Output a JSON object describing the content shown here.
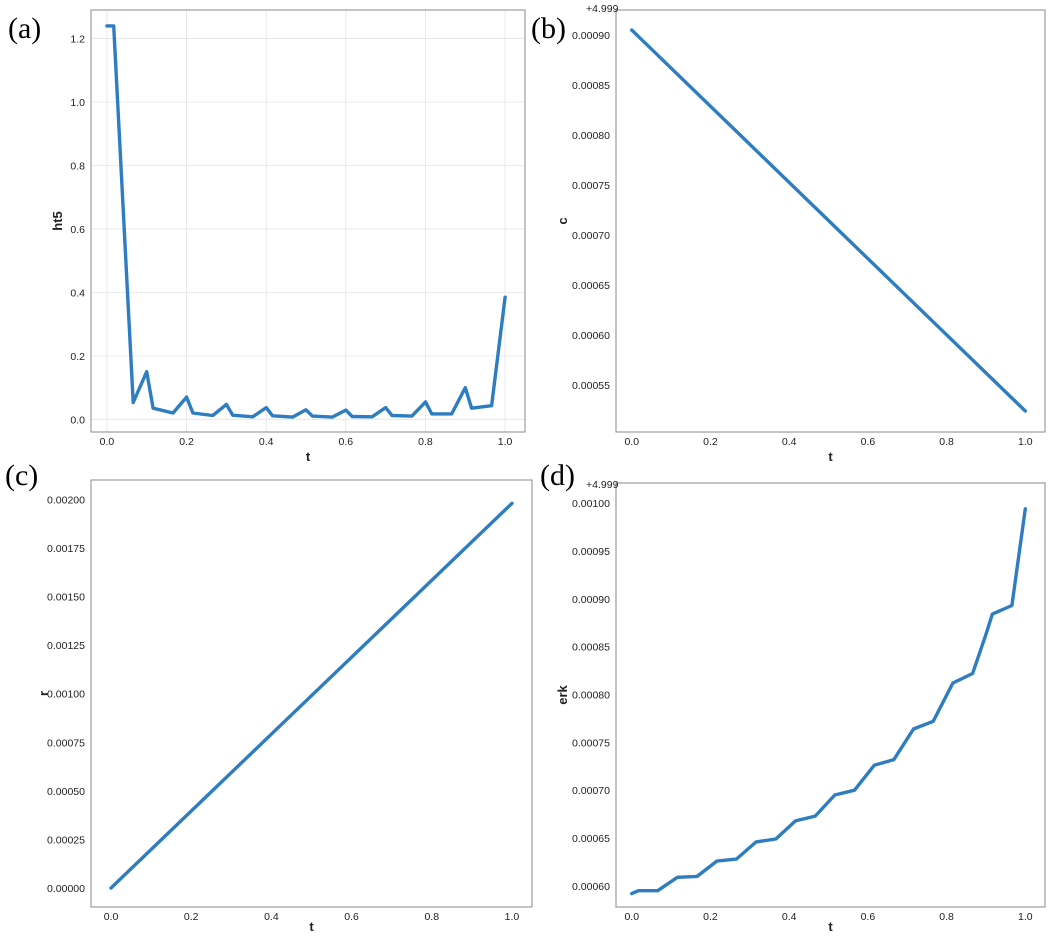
{
  "colors": {
    "line": "#2e7dc0",
    "frame": "#888888",
    "grid": "#e4e4e4"
  },
  "chart_data": [
    {
      "panel_label": "(a)",
      "type": "line",
      "xlabel": "t",
      "ylabel": "ht5",
      "offset_text": "",
      "grid": true,
      "xlim": [
        -0.04,
        1.05
      ],
      "ylim": [
        -0.04,
        1.29
      ],
      "xticks": [
        0.0,
        0.2,
        0.4,
        0.6,
        0.8,
        1.0
      ],
      "xtick_labels": [
        "0.0",
        "0.2",
        "0.4",
        "0.6",
        "0.8",
        "1.0"
      ],
      "yticks": [
        0.0,
        0.2,
        0.4,
        0.6,
        0.8,
        1.0,
        1.2
      ],
      "ytick_labels": [
        "0.0",
        "0.2",
        "0.4",
        "0.6",
        "0.8",
        "1.0",
        "1.2"
      ],
      "series": [
        {
          "x": [
            0.0,
            0.017,
            0.066,
            0.1,
            0.116,
            0.166,
            0.2,
            0.216,
            0.266,
            0.3,
            0.316,
            0.366,
            0.4,
            0.416,
            0.466,
            0.5,
            0.516,
            0.566,
            0.6,
            0.616,
            0.666,
            0.7,
            0.716,
            0.766,
            0.8,
            0.816,
            0.866,
            0.9,
            0.916,
            0.966,
            1.0
          ],
          "y": [
            1.24,
            1.24,
            0.053,
            0.15,
            0.035,
            0.02,
            0.07,
            0.02,
            0.012,
            0.047,
            0.013,
            0.008,
            0.037,
            0.011,
            0.007,
            0.03,
            0.01,
            0.007,
            0.029,
            0.009,
            0.008,
            0.037,
            0.012,
            0.01,
            0.055,
            0.017,
            0.017,
            0.1,
            0.035,
            0.043,
            0.385
          ]
        }
      ]
    },
    {
      "panel_label": "(b)",
      "type": "line",
      "xlabel": "t",
      "ylabel": "c",
      "offset_text": "+4.999",
      "grid": false,
      "xlim": [
        -0.04,
        1.05
      ],
      "ylim": [
        0.000503,
        0.000925
      ],
      "xticks": [
        0.0,
        0.2,
        0.4,
        0.6,
        0.8,
        1.0
      ],
      "xtick_labels": [
        "0.0",
        "0.2",
        "0.4",
        "0.6",
        "0.8",
        "1.0"
      ],
      "yticks": [
        0.00055,
        0.0006,
        0.00065,
        0.0007,
        0.00075,
        0.0008,
        0.00085,
        0.0009
      ],
      "ytick_labels": [
        "0.00055",
        "0.00060",
        "0.00065",
        "0.00070",
        "0.00075",
        "0.00080",
        "0.00085",
        "0.00090"
      ],
      "series": [
        {
          "x": [
            0.0,
            1.0
          ],
          "y": [
            0.000905,
            0.000524
          ]
        }
      ]
    },
    {
      "panel_label": "(c)",
      "type": "line",
      "xlabel": "t",
      "ylabel": "r",
      "offset_text": "",
      "grid": false,
      "xlim": [
        -0.05,
        1.05
      ],
      "ylim": [
        -9.8e-05,
        0.0021
      ],
      "xticks": [
        0.0,
        0.2,
        0.4,
        0.6,
        0.8,
        1.0
      ],
      "xtick_labels": [
        "0.0",
        "0.2",
        "0.4",
        "0.6",
        "0.8",
        "1.0"
      ],
      "yticks": [
        0.0,
        0.00025,
        0.0005,
        0.00075,
        0.001,
        0.00125,
        0.0015,
        0.00175,
        0.002
      ],
      "ytick_labels": [
        "0.00000",
        "0.00025",
        "0.00050",
        "0.00075",
        "0.00100",
        "0.00125",
        "0.00150",
        "0.00175",
        "0.00200"
      ],
      "series": [
        {
          "x": [
            0.0,
            1.0
          ],
          "y": [
            0.0,
            0.00198
          ]
        }
      ]
    },
    {
      "panel_label": "(d)",
      "type": "line",
      "xlabel": "t",
      "ylabel": "erk",
      "offset_text": "+4.999",
      "grid": false,
      "xlim": [
        -0.04,
        1.05
      ],
      "ylim": [
        0.000578,
        0.001021
      ],
      "xticks": [
        0.0,
        0.2,
        0.4,
        0.6,
        0.8,
        1.0
      ],
      "xtick_labels": [
        "0.0",
        "0.2",
        "0.4",
        "0.6",
        "0.8",
        "1.0"
      ],
      "yticks": [
        0.0006,
        0.00065,
        0.0007,
        0.00075,
        0.0008,
        0.00085,
        0.0009,
        0.00095,
        0.001
      ],
      "ytick_labels": [
        "0.00060",
        "0.00065",
        "0.00070",
        "0.00075",
        "0.00080",
        "0.00085",
        "0.00090",
        "0.00095",
        "0.00100"
      ],
      "series": [
        {
          "x": [
            0.0,
            0.017,
            0.066,
            0.116,
            0.166,
            0.216,
            0.266,
            0.316,
            0.366,
            0.416,
            0.466,
            0.516,
            0.566,
            0.616,
            0.666,
            0.716,
            0.766,
            0.816,
            0.866,
            0.9,
            0.916,
            0.966,
            1.0
          ],
          "y": [
            0.000592,
            0.000595,
            0.000595,
            0.000609,
            0.00061,
            0.000626,
            0.000628,
            0.000646,
            0.000649,
            0.000668,
            0.000673,
            0.000695,
            0.0007,
            0.000726,
            0.000732,
            0.000764,
            0.000772,
            0.000812,
            0.000822,
            0.000863,
            0.000884,
            0.000893,
            0.000994
          ]
        }
      ]
    }
  ]
}
